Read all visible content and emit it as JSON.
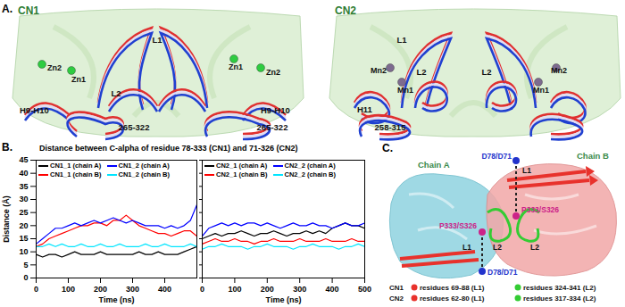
{
  "chart_data": [
    {
      "type": "line",
      "title": "Distance between C-alpha of residue 78-333 (CN1) and 71-326 (CN2)",
      "annotations": [
        "B."
      ],
      "x_label": "Time (ns)",
      "y_label": "Distance (Å)",
      "x": [
        0,
        20,
        40,
        60,
        80,
        100,
        120,
        140,
        160,
        180,
        200,
        220,
        240,
        260,
        280,
        300,
        320,
        340,
        360,
        380,
        400,
        420,
        440,
        460,
        480,
        500
      ],
      "xlim": [
        0,
        500
      ],
      "xticks": [
        0,
        100,
        200,
        300,
        400
      ],
      "ylim": [
        0,
        45
      ],
      "yticks": [
        0,
        5,
        10,
        15,
        20,
        25,
        30,
        35,
        40,
        45
      ],
      "legend": "top",
      "series": [
        {
          "name": "CN1_1 (chain A)",
          "color": "#000000",
          "values": [
            9,
            8,
            9,
            9,
            8,
            9,
            10,
            9,
            9,
            9,
            10,
            9,
            9,
            9,
            9,
            9,
            10,
            9,
            9,
            10,
            9,
            9,
            9,
            10,
            11,
            12
          ]
        },
        {
          "name": "CN1_1 (chain B)",
          "color": "#ff0000",
          "values": [
            12,
            13,
            15,
            16,
            17,
            18,
            19,
            20,
            20,
            21,
            21,
            20,
            22,
            22,
            24,
            22,
            20,
            19,
            18,
            17,
            17,
            16,
            17,
            18,
            18,
            16
          ]
        },
        {
          "name": "CN1_2 (chain A)",
          "color": "#0000ff",
          "values": [
            13,
            15,
            17,
            19,
            19,
            20,
            21,
            20,
            21,
            22,
            21,
            22,
            23,
            22,
            21,
            22,
            21,
            20,
            20,
            20,
            19,
            20,
            19,
            20,
            22,
            28
          ]
        },
        {
          "name": "CN1_2 (chain B)",
          "color": "#00e5ff",
          "values": [
            12,
            12,
            13,
            12,
            13,
            12,
            12,
            13,
            12,
            12,
            13,
            12,
            12,
            13,
            12,
            12,
            12,
            13,
            12,
            12,
            13,
            12,
            12,
            12,
            13,
            12
          ]
        }
      ]
    },
    {
      "type": "line",
      "x_label": "Time (ns)",
      "x": [
        0,
        20,
        40,
        60,
        80,
        100,
        120,
        140,
        160,
        180,
        200,
        220,
        240,
        260,
        280,
        300,
        320,
        340,
        360,
        380,
        400,
        420,
        440,
        460,
        480,
        500
      ],
      "xlim": [
        0,
        500
      ],
      "xticks": [
        0,
        100,
        200,
        300,
        400,
        500
      ],
      "ylim": [
        0,
        45
      ],
      "yticks": [
        0,
        5,
        10,
        15,
        20,
        25,
        30,
        35,
        40,
        45
      ],
      "tick_labels": "x",
      "legend": "top",
      "series": [
        {
          "name": "CN2_1 (chain A)",
          "color": "#000000",
          "values": [
            15,
            16,
            17,
            16,
            17,
            17,
            18,
            17,
            16,
            17,
            17,
            18,
            17,
            16,
            17,
            17,
            18,
            17,
            18,
            17,
            19,
            20,
            21,
            20,
            20,
            19
          ]
        },
        {
          "name": "CN2_1 (chain B)",
          "color": "#ff0000",
          "values": [
            13,
            14,
            15,
            14,
            14,
            15,
            14,
            14,
            13,
            14,
            14,
            15,
            14,
            14,
            14,
            15,
            14,
            14,
            14,
            15,
            14,
            14,
            14,
            15,
            14,
            14
          ]
        },
        {
          "name": "CN2_2 (chain A)",
          "color": "#0000ff",
          "values": [
            16,
            19,
            20,
            21,
            20,
            21,
            20,
            21,
            21,
            20,
            21,
            20,
            19,
            20,
            21,
            20,
            20,
            21,
            20,
            20,
            19,
            20,
            21,
            20,
            20,
            21
          ]
        },
        {
          "name": "CN2_2 (chain B)",
          "color": "#00e5ff",
          "values": [
            11,
            12,
            12,
            13,
            12,
            12,
            12,
            11,
            12,
            12,
            13,
            12,
            12,
            12,
            11,
            12,
            12,
            13,
            12,
            12,
            12,
            11,
            12,
            12,
            13,
            12
          ]
        }
      ]
    }
  ],
  "panel_a": {
    "label": "A.",
    "structures": [
      {
        "title": "CN1",
        "metal_color": "#2ecc40",
        "metals": [
          "Zn2",
          "Zn1",
          "Zn1",
          "Zn2"
        ],
        "labels": [
          "L1",
          "L2",
          "H9-H10",
          "H9-H10",
          "265-322",
          "265-322"
        ]
      },
      {
        "title": "CN2",
        "metal_color": "#7d6b8f",
        "metals": [
          "Mn2",
          "Mn1",
          "Mn1",
          "Mn2"
        ],
        "labels": [
          "L1",
          "L2",
          "L2",
          "H11",
          "258-315"
        ]
      }
    ]
  },
  "panel_c": {
    "label": "C.",
    "chains": [
      "Chain A",
      "Chain B"
    ],
    "residue_labels": [
      "D78/D71",
      "P333/S326",
      "P333/S326",
      "D78/D71"
    ],
    "loop_labels": [
      "L1",
      "L2",
      "L2",
      "L1"
    ],
    "legend": [
      {
        "protein": "CN1",
        "items": [
          {
            "text": "residues 69-88 (L1)",
            "color": "#e8322c"
          },
          {
            "text": "residues 324-341 (L2)",
            "color": "#33cc33"
          }
        ]
      },
      {
        "protein": "CN2",
        "items": [
          {
            "text": "residues 62-80 (L1)",
            "color": "#e8322c"
          },
          {
            "text": "residues 317-334 (L2)",
            "color": "#33cc33"
          }
        ]
      }
    ]
  }
}
